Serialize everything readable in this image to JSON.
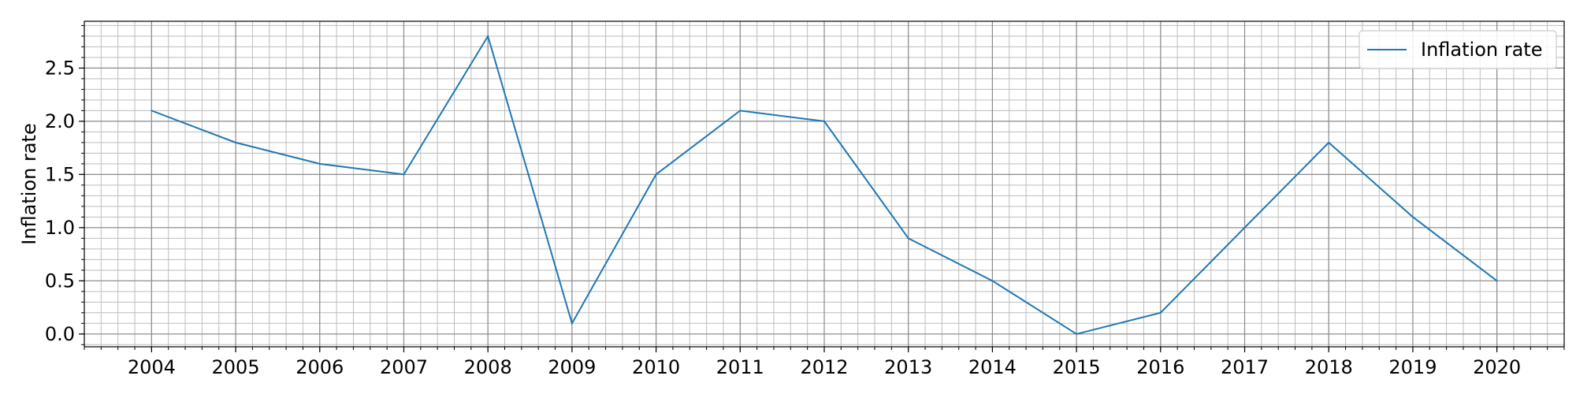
{
  "chart_data": {
    "type": "line",
    "title": "",
    "xlabel": "",
    "ylabel": "Inflation rate",
    "x": [
      2004,
      2005,
      2006,
      2007,
      2008,
      2009,
      2010,
      2011,
      2012,
      2013,
      2014,
      2015,
      2016,
      2017,
      2018,
      2019,
      2020
    ],
    "series": [
      {
        "name": "Inflation rate",
        "values": [
          2.1,
          1.8,
          1.6,
          1.5,
          2.8,
          0.1,
          1.5,
          2.1,
          2.0,
          0.9,
          0.5,
          0.0,
          0.2,
          1.0,
          1.8,
          1.1,
          0.5
        ],
        "color": "#1f77b4"
      }
    ],
    "xlim": [
      2003.2,
      2020.8
    ],
    "ylim": [
      -0.12,
      2.94
    ],
    "x_ticks": [
      "2004",
      "2005",
      "2006",
      "2007",
      "2008",
      "2009",
      "2010",
      "2011",
      "2012",
      "2013",
      "2014",
      "2015",
      "2016",
      "2017",
      "2018",
      "2019",
      "2020"
    ],
    "y_ticks": [
      "0.0",
      "0.5",
      "1.0",
      "1.5",
      "2.0",
      "2.5"
    ],
    "grid": true,
    "minor_grid": true,
    "legend": "top-right"
  }
}
